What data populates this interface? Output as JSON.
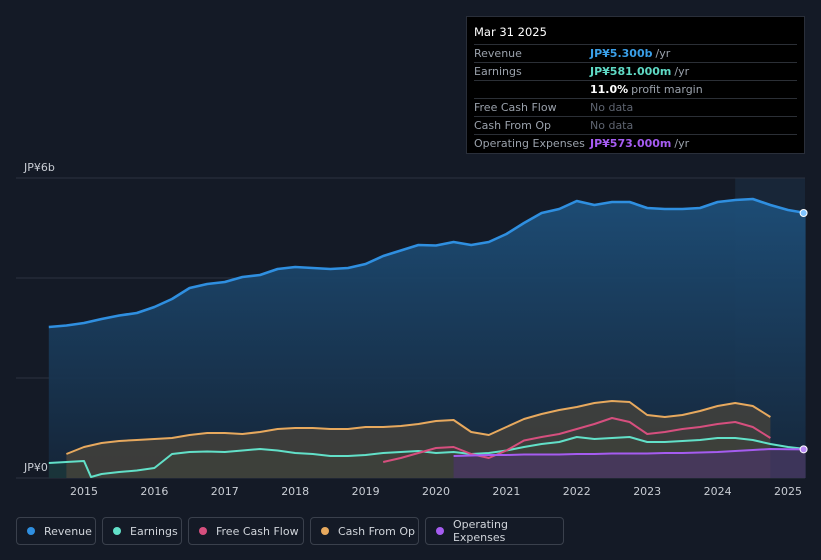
{
  "tooltip": {
    "date": "Mar 31 2025",
    "rows": [
      {
        "label": "Revenue",
        "value": "JP¥5.300b",
        "unit": "/yr",
        "color": "#3a9fe8"
      },
      {
        "label": "Earnings",
        "value": "JP¥581.000m",
        "unit": "/yr",
        "color": "#5fd9c4"
      },
      {
        "label": "",
        "value": "11.0%",
        "unit": "profit margin",
        "color": "#ffffff"
      },
      {
        "label": "Free Cash Flow",
        "nodata": "No data"
      },
      {
        "label": "Cash From Op",
        "nodata": "No data"
      },
      {
        "label": "Operating Expenses",
        "value": "JP¥573.000m",
        "unit": "/yr",
        "color": "#a65cf2"
      }
    ]
  },
  "legend": [
    {
      "label": "Revenue",
      "color": "#2f8fe0"
    },
    {
      "label": "Earnings",
      "color": "#62e0c8"
    },
    {
      "label": "Free Cash Flow",
      "color": "#d64f7e"
    },
    {
      "label": "Cash From Op",
      "color": "#e7a95e"
    },
    {
      "label": "Operating Expenses",
      "color": "#a55cf0"
    }
  ],
  "chart_data": {
    "type": "area",
    "title": "",
    "unit": "JP¥ billions",
    "y_ticks": [
      {
        "value": 0,
        "label": "JP¥0"
      },
      {
        "value": 6,
        "label": "JP¥6b"
      }
    ],
    "ylim": [
      0,
      6
    ],
    "xlim": [
      2014.5,
      2025.25
    ],
    "x_ticks": [
      2015,
      2016,
      2017,
      2018,
      2019,
      2020,
      2021,
      2022,
      2023,
      2024,
      2025
    ],
    "forecast_start": 2024.25,
    "series": [
      {
        "name": "Revenue",
        "color": "#2f8fe0",
        "fill": true,
        "points": [
          [
            2014.5,
            3.02
          ],
          [
            2014.75,
            3.05
          ],
          [
            2015.0,
            3.1
          ],
          [
            2015.25,
            3.18
          ],
          [
            2015.5,
            3.25
          ],
          [
            2015.75,
            3.3
          ],
          [
            2016.0,
            3.42
          ],
          [
            2016.25,
            3.58
          ],
          [
            2016.5,
            3.8
          ],
          [
            2016.75,
            3.88
          ],
          [
            2017.0,
            3.92
          ],
          [
            2017.25,
            4.02
          ],
          [
            2017.5,
            4.06
          ],
          [
            2017.75,
            4.18
          ],
          [
            2018.0,
            4.22
          ],
          [
            2018.25,
            4.2
          ],
          [
            2018.5,
            4.18
          ],
          [
            2018.75,
            4.2
          ],
          [
            2019.0,
            4.28
          ],
          [
            2019.25,
            4.44
          ],
          [
            2019.5,
            4.55
          ],
          [
            2019.75,
            4.66
          ],
          [
            2020.0,
            4.65
          ],
          [
            2020.25,
            4.72
          ],
          [
            2020.5,
            4.66
          ],
          [
            2020.75,
            4.72
          ],
          [
            2021.0,
            4.88
          ],
          [
            2021.25,
            5.1
          ],
          [
            2021.5,
            5.3
          ],
          [
            2021.75,
            5.38
          ],
          [
            2022.0,
            5.54
          ],
          [
            2022.25,
            5.46
          ],
          [
            2022.5,
            5.52
          ],
          [
            2022.75,
            5.52
          ],
          [
            2023.0,
            5.4
          ],
          [
            2023.25,
            5.38
          ],
          [
            2023.5,
            5.38
          ],
          [
            2023.75,
            5.4
          ],
          [
            2024.0,
            5.52
          ],
          [
            2024.25,
            5.56
          ],
          [
            2024.5,
            5.58
          ],
          [
            2024.75,
            5.46
          ],
          [
            2025.0,
            5.36
          ],
          [
            2025.25,
            5.3
          ]
        ]
      },
      {
        "name": "Earnings",
        "color": "#62e0c8",
        "fill": true,
        "points": [
          [
            2014.5,
            0.3
          ],
          [
            2014.75,
            0.32
          ],
          [
            2015.0,
            0.34
          ],
          [
            2015.1,
            0.02
          ],
          [
            2015.25,
            0.08
          ],
          [
            2015.5,
            0.12
          ],
          [
            2015.75,
            0.15
          ],
          [
            2016.0,
            0.2
          ],
          [
            2016.25,
            0.48
          ],
          [
            2016.5,
            0.52
          ],
          [
            2016.75,
            0.53
          ],
          [
            2017.0,
            0.52
          ],
          [
            2017.25,
            0.55
          ],
          [
            2017.5,
            0.58
          ],
          [
            2017.75,
            0.55
          ],
          [
            2018.0,
            0.5
          ],
          [
            2018.25,
            0.48
          ],
          [
            2018.5,
            0.44
          ],
          [
            2018.75,
            0.44
          ],
          [
            2019.0,
            0.46
          ],
          [
            2019.25,
            0.5
          ],
          [
            2019.5,
            0.52
          ],
          [
            2019.75,
            0.54
          ],
          [
            2020.0,
            0.5
          ],
          [
            2020.25,
            0.52
          ],
          [
            2020.5,
            0.48
          ],
          [
            2020.75,
            0.5
          ],
          [
            2021.0,
            0.55
          ],
          [
            2021.25,
            0.62
          ],
          [
            2021.5,
            0.68
          ],
          [
            2021.75,
            0.72
          ],
          [
            2022.0,
            0.82
          ],
          [
            2022.25,
            0.78
          ],
          [
            2022.5,
            0.8
          ],
          [
            2022.75,
            0.82
          ],
          [
            2023.0,
            0.72
          ],
          [
            2023.25,
            0.72
          ],
          [
            2023.5,
            0.74
          ],
          [
            2023.75,
            0.76
          ],
          [
            2024.0,
            0.8
          ],
          [
            2024.25,
            0.8
          ],
          [
            2024.5,
            0.76
          ],
          [
            2024.75,
            0.68
          ],
          [
            2025.0,
            0.62
          ],
          [
            2025.25,
            0.58
          ]
        ]
      },
      {
        "name": "Free Cash Flow",
        "color": "#d64f7e",
        "fill": false,
        "points": [
          [
            2019.25,
            0.32
          ],
          [
            2019.5,
            0.4
          ],
          [
            2019.75,
            0.5
          ],
          [
            2020.0,
            0.6
          ],
          [
            2020.25,
            0.62
          ],
          [
            2020.5,
            0.48
          ],
          [
            2020.75,
            0.4
          ],
          [
            2021.0,
            0.55
          ],
          [
            2021.25,
            0.75
          ],
          [
            2021.5,
            0.82
          ],
          [
            2021.75,
            0.88
          ],
          [
            2022.0,
            0.98
          ],
          [
            2022.25,
            1.08
          ],
          [
            2022.5,
            1.2
          ],
          [
            2022.75,
            1.12
          ],
          [
            2023.0,
            0.88
          ],
          [
            2023.25,
            0.92
          ],
          [
            2023.5,
            0.98
          ],
          [
            2023.75,
            1.02
          ],
          [
            2024.0,
            1.08
          ],
          [
            2024.25,
            1.12
          ],
          [
            2024.5,
            1.02
          ],
          [
            2024.75,
            0.8
          ]
        ]
      },
      {
        "name": "Cash From Op",
        "color": "#e7a95e",
        "fill": true,
        "points": [
          [
            2014.75,
            0.48
          ],
          [
            2015.0,
            0.62
          ],
          [
            2015.25,
            0.7
          ],
          [
            2015.5,
            0.74
          ],
          [
            2015.75,
            0.76
          ],
          [
            2016.0,
            0.78
          ],
          [
            2016.25,
            0.8
          ],
          [
            2016.5,
            0.86
          ],
          [
            2016.75,
            0.9
          ],
          [
            2017.0,
            0.9
          ],
          [
            2017.25,
            0.88
          ],
          [
            2017.5,
            0.92
          ],
          [
            2017.75,
            0.98
          ],
          [
            2018.0,
            1.0
          ],
          [
            2018.25,
            1.0
          ],
          [
            2018.5,
            0.98
          ],
          [
            2018.75,
            0.98
          ],
          [
            2019.0,
            1.02
          ],
          [
            2019.25,
            1.02
          ],
          [
            2019.5,
            1.04
          ],
          [
            2019.75,
            1.08
          ],
          [
            2020.0,
            1.14
          ],
          [
            2020.25,
            1.16
          ],
          [
            2020.5,
            0.92
          ],
          [
            2020.75,
            0.86
          ],
          [
            2021.0,
            1.02
          ],
          [
            2021.25,
            1.18
          ],
          [
            2021.5,
            1.28
          ],
          [
            2021.75,
            1.36
          ],
          [
            2022.0,
            1.42
          ],
          [
            2022.25,
            1.5
          ],
          [
            2022.5,
            1.54
          ],
          [
            2022.75,
            1.52
          ],
          [
            2023.0,
            1.26
          ],
          [
            2023.25,
            1.22
          ],
          [
            2023.5,
            1.26
          ],
          [
            2023.75,
            1.34
          ],
          [
            2024.0,
            1.44
          ],
          [
            2024.25,
            1.5
          ],
          [
            2024.5,
            1.44
          ],
          [
            2024.75,
            1.22
          ]
        ]
      },
      {
        "name": "Operating Expenses",
        "color": "#a55cf0",
        "fill": true,
        "points": [
          [
            2020.25,
            0.44
          ],
          [
            2020.5,
            0.45
          ],
          [
            2020.75,
            0.46
          ],
          [
            2021.0,
            0.46
          ],
          [
            2021.25,
            0.47
          ],
          [
            2021.5,
            0.47
          ],
          [
            2021.75,
            0.47
          ],
          [
            2022.0,
            0.48
          ],
          [
            2022.25,
            0.48
          ],
          [
            2022.5,
            0.49
          ],
          [
            2022.75,
            0.49
          ],
          [
            2023.0,
            0.49
          ],
          [
            2023.25,
            0.5
          ],
          [
            2023.5,
            0.5
          ],
          [
            2023.75,
            0.51
          ],
          [
            2024.0,
            0.52
          ],
          [
            2024.25,
            0.54
          ],
          [
            2024.5,
            0.56
          ],
          [
            2024.75,
            0.58
          ],
          [
            2025.0,
            0.575
          ],
          [
            2025.25,
            0.573
          ]
        ]
      }
    ]
  }
}
